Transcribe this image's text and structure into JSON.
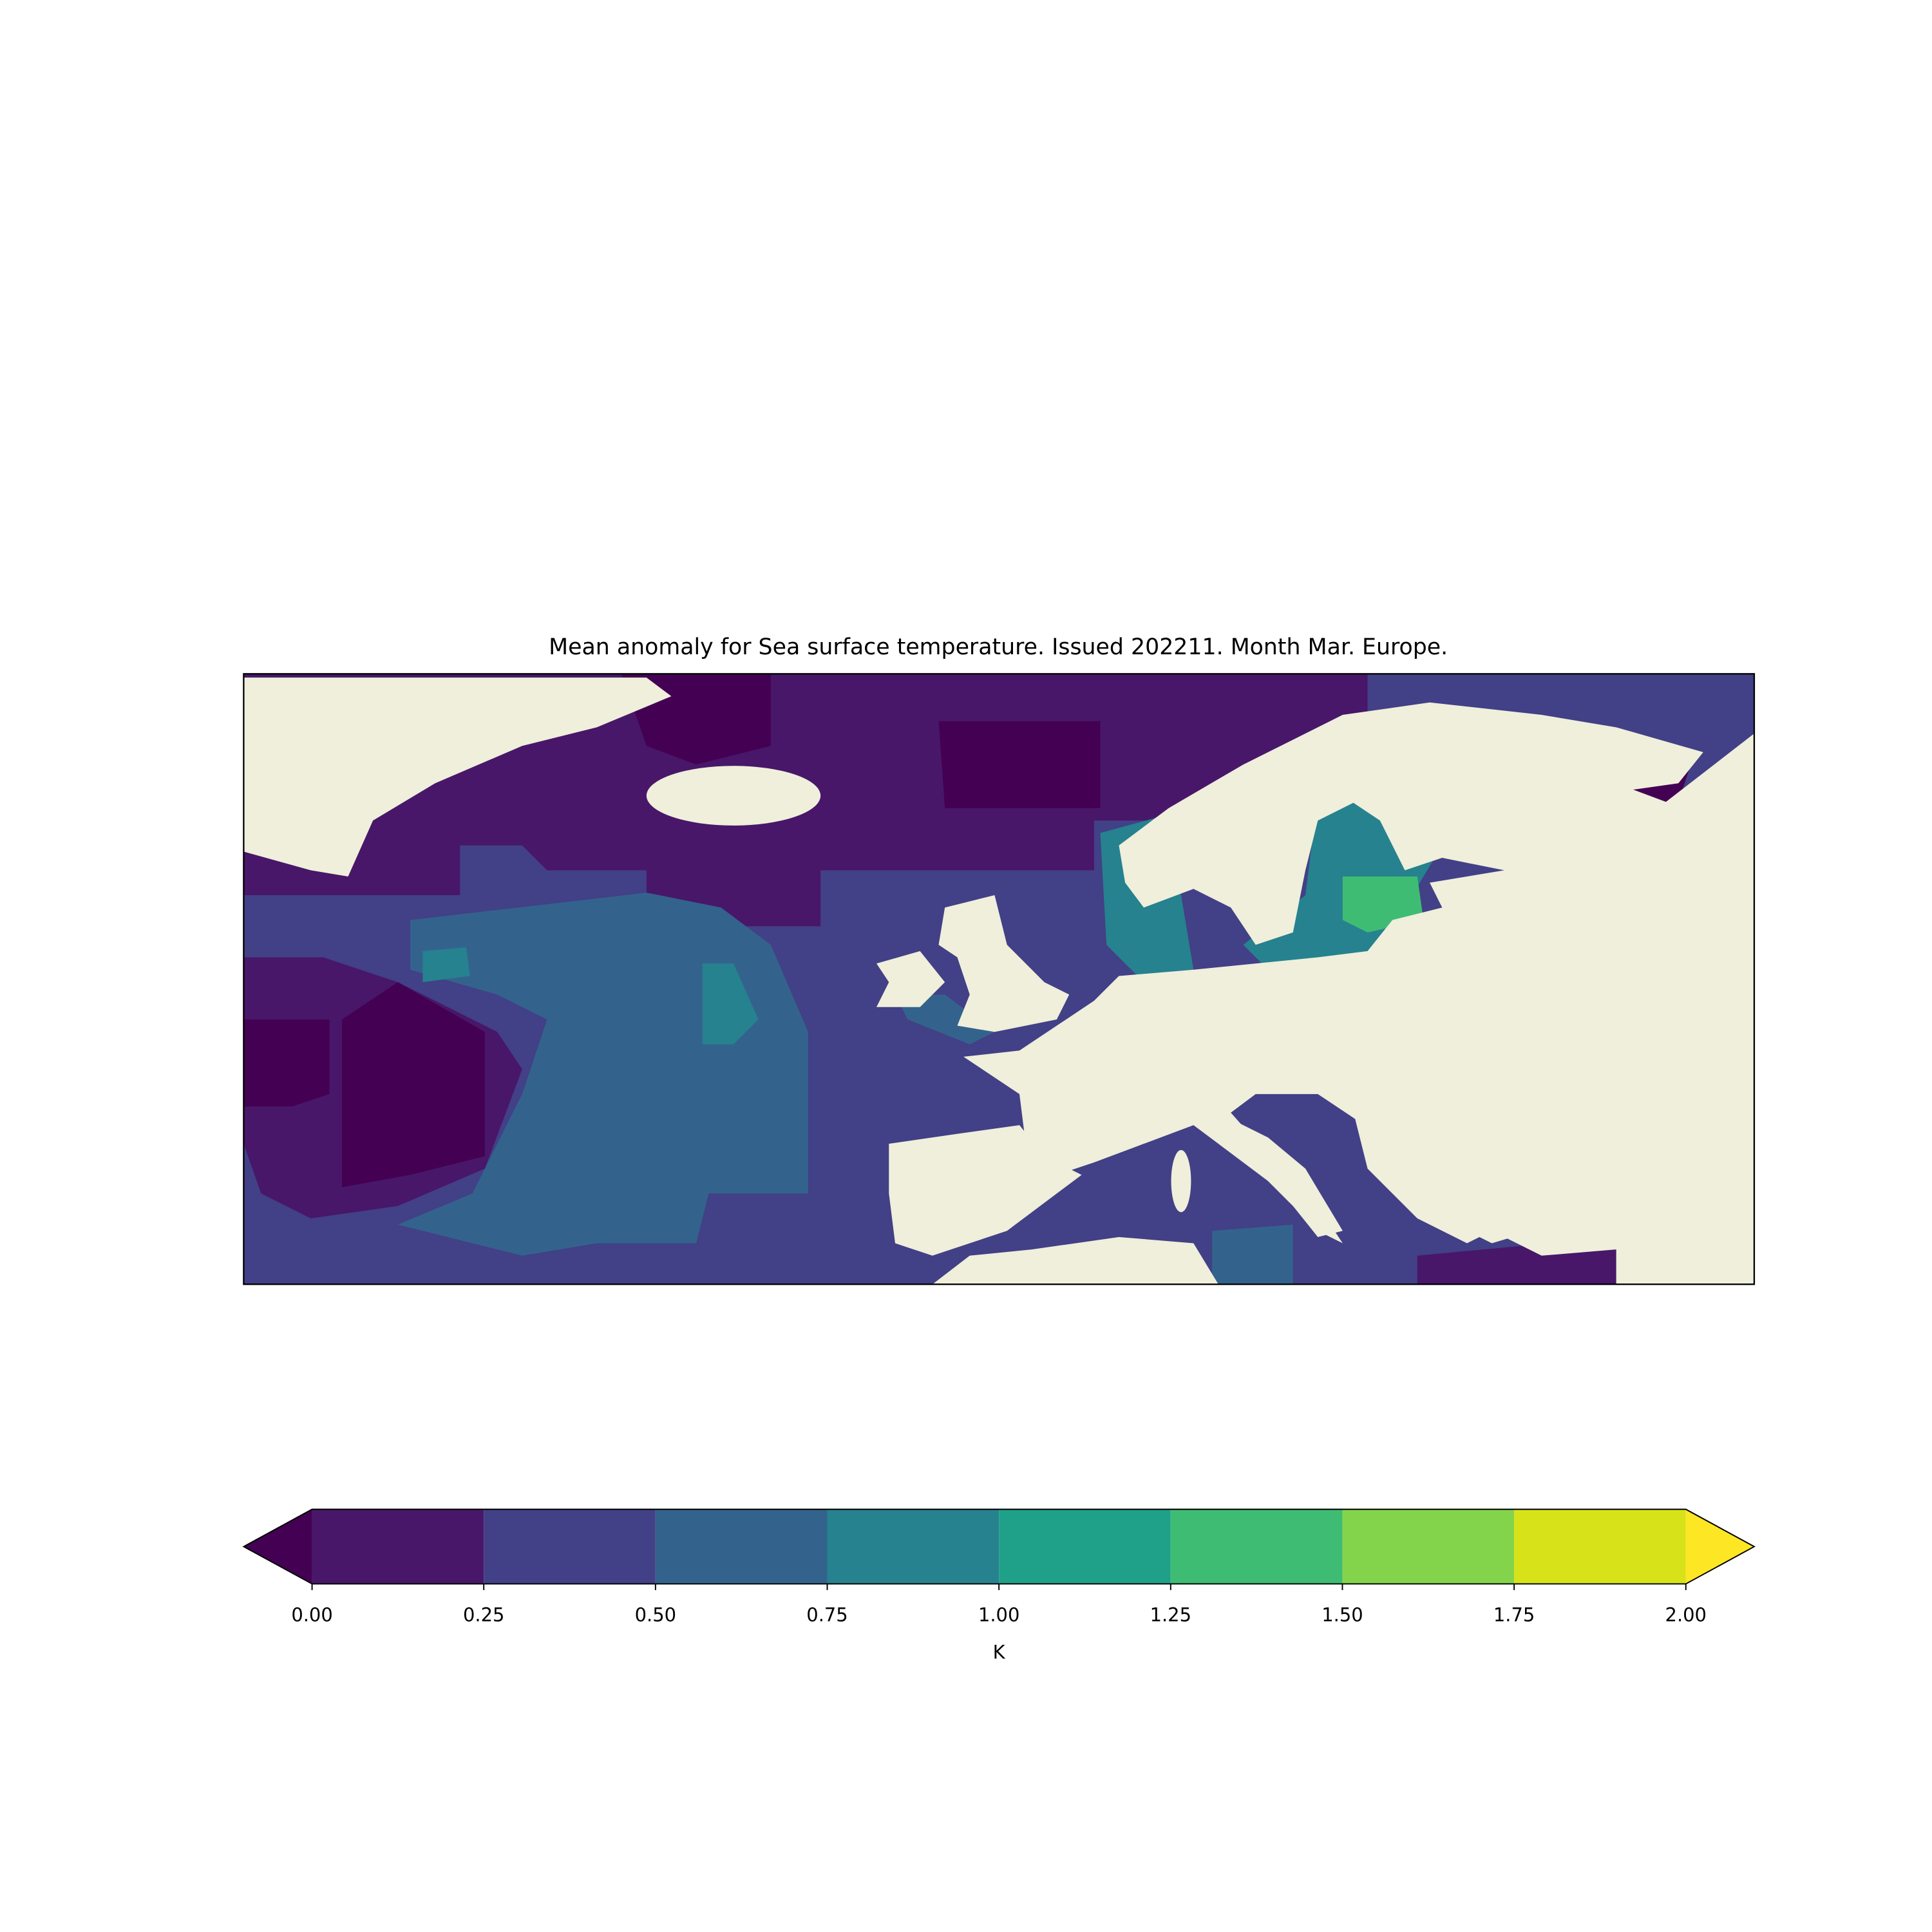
{
  "title": "Mean anomaly for Sea surface temperature. Issued 202211. Month Mar. Europe.",
  "colorbar": {
    "label": "K",
    "extend": "both",
    "ticks": [
      {
        "value": 0,
        "label": "0.00"
      },
      {
        "value": 0.25,
        "label": "0.25"
      },
      {
        "value": 0.5,
        "label": "0.50"
      },
      {
        "value": 0.75,
        "label": "0.75"
      },
      {
        "value": 1,
        "label": "1.00"
      },
      {
        "value": 1.25,
        "label": "1.25"
      },
      {
        "value": 1.5,
        "label": "1.50"
      },
      {
        "value": 1.75,
        "label": "1.75"
      },
      {
        "value": 2,
        "label": "2.00"
      }
    ],
    "under_color": "#440154",
    "colors": [
      "#481769",
      "#424086",
      "#33638d",
      "#26828e",
      "#1fa088",
      "#3fbc73",
      "#84d44b",
      "#d8e219"
    ],
    "over_color": "#fde725"
  }
}
